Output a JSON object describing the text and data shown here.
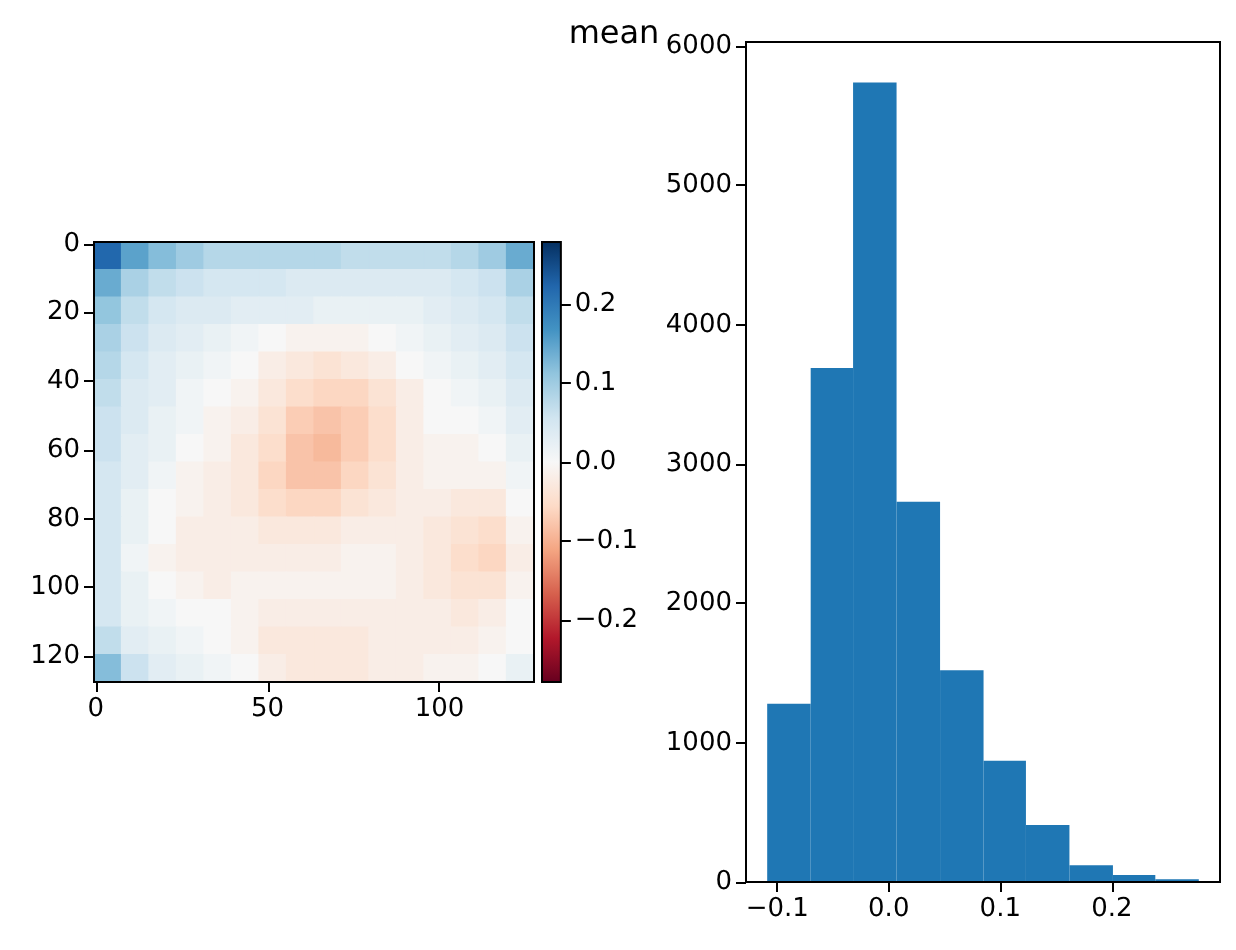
{
  "chart_data": [
    {
      "type": "heatmap",
      "xlim": [
        -0.5,
        127.5
      ],
      "ylim": [
        127.5,
        -0.5
      ],
      "xticks": [
        0,
        50,
        100
      ],
      "yticks": [
        0,
        20,
        40,
        60,
        80,
        100,
        120
      ],
      "cells": [
        [
          0.22,
          0.15,
          0.12,
          0.1,
          0.08,
          0.08,
          0.08,
          0.08,
          0.08,
          0.07,
          0.07,
          0.07,
          0.07,
          0.08,
          0.1,
          0.14
        ],
        [
          0.14,
          0.09,
          0.07,
          0.06,
          0.05,
          0.05,
          0.05,
          0.04,
          0.04,
          0.04,
          0.04,
          0.04,
          0.04,
          0.05,
          0.06,
          0.09
        ],
        [
          0.11,
          0.07,
          0.05,
          0.04,
          0.04,
          0.03,
          0.03,
          0.03,
          0.02,
          0.02,
          0.02,
          0.02,
          0.03,
          0.04,
          0.05,
          0.07
        ],
        [
          0.09,
          0.06,
          0.04,
          0.03,
          0.02,
          0.01,
          0.0,
          -0.01,
          -0.01,
          -0.01,
          0.0,
          0.01,
          0.02,
          0.03,
          0.04,
          0.06
        ],
        [
          0.08,
          0.05,
          0.03,
          0.02,
          0.01,
          0.0,
          -0.02,
          -0.03,
          -0.04,
          -0.03,
          -0.02,
          0.0,
          0.01,
          0.02,
          0.03,
          0.05
        ],
        [
          0.07,
          0.04,
          0.03,
          0.01,
          0.0,
          -0.01,
          -0.03,
          -0.05,
          -0.06,
          -0.06,
          -0.04,
          -0.02,
          0.0,
          0.01,
          0.02,
          0.04
        ],
        [
          0.06,
          0.04,
          0.02,
          0.01,
          -0.01,
          -0.02,
          -0.04,
          -0.07,
          -0.08,
          -0.07,
          -0.05,
          -0.02,
          0.0,
          0.0,
          0.01,
          0.03
        ],
        [
          0.06,
          0.03,
          0.02,
          0.0,
          -0.01,
          -0.03,
          -0.05,
          -0.08,
          -0.09,
          -0.07,
          -0.05,
          -0.02,
          -0.01,
          -0.01,
          0.0,
          0.02
        ],
        [
          0.05,
          0.03,
          0.01,
          -0.01,
          -0.02,
          -0.03,
          -0.06,
          -0.08,
          -0.08,
          -0.06,
          -0.04,
          -0.02,
          -0.01,
          -0.01,
          -0.01,
          0.01
        ],
        [
          0.05,
          0.02,
          0.0,
          -0.01,
          -0.02,
          -0.03,
          -0.05,
          -0.06,
          -0.06,
          -0.04,
          -0.03,
          -0.02,
          -0.02,
          -0.03,
          -0.03,
          0.0
        ],
        [
          0.05,
          0.02,
          0.0,
          -0.02,
          -0.02,
          -0.02,
          -0.03,
          -0.03,
          -0.03,
          -0.02,
          -0.02,
          -0.02,
          -0.03,
          -0.04,
          -0.05,
          -0.01
        ],
        [
          0.05,
          0.01,
          -0.01,
          -0.02,
          -0.02,
          -0.02,
          -0.02,
          -0.02,
          -0.02,
          -0.01,
          -0.01,
          -0.02,
          -0.03,
          -0.05,
          -0.06,
          -0.02
        ],
        [
          0.05,
          0.02,
          0.0,
          -0.01,
          -0.02,
          -0.01,
          -0.01,
          -0.01,
          -0.01,
          -0.01,
          -0.01,
          -0.02,
          -0.03,
          -0.04,
          -0.04,
          -0.01
        ],
        [
          0.05,
          0.02,
          0.01,
          0.0,
          0.0,
          -0.01,
          -0.02,
          -0.02,
          -0.02,
          -0.02,
          -0.02,
          -0.02,
          -0.02,
          -0.03,
          -0.02,
          0.0
        ],
        [
          0.07,
          0.03,
          0.02,
          0.01,
          0.0,
          -0.01,
          -0.03,
          -0.03,
          -0.03,
          -0.03,
          -0.02,
          -0.02,
          -0.02,
          -0.02,
          -0.01,
          0.0
        ],
        [
          0.12,
          0.06,
          0.03,
          0.02,
          0.01,
          0.0,
          -0.02,
          -0.03,
          -0.03,
          -0.03,
          -0.02,
          -0.02,
          -0.01,
          -0.01,
          0.0,
          0.02
        ]
      ],
      "clim": [
        -0.278,
        0.278
      ],
      "cticks": [
        {
          "value": -0.2,
          "label": "−0.2"
        },
        {
          "value": -0.1,
          "label": "−0.1"
        },
        {
          "value": 0,
          "label": "0.0"
        },
        0.1,
        0.2
      ]
    },
    {
      "type": "histogram",
      "title": "mean",
      "bins": [
        -0.109,
        -0.07,
        -0.032,
        0.007,
        0.046,
        0.085,
        0.123,
        0.162,
        0.201,
        0.239,
        0.278
      ],
      "values": [
        1280,
        3690,
        5740,
        2730,
        1520,
        870,
        410,
        120,
        50,
        20
      ],
      "color": "#1f77b4",
      "xlim": [
        -0.128,
        0.297
      ],
      "ylim": [
        0,
        6030
      ],
      "xticks": [
        {
          "value": -0.1,
          "label": "−0.1"
        },
        {
          "value": 0,
          "label": "0.0"
        },
        0.1,
        0.2
      ],
      "yticks": [
        0,
        1000,
        2000,
        3000,
        4000,
        5000,
        6000
      ]
    }
  ]
}
